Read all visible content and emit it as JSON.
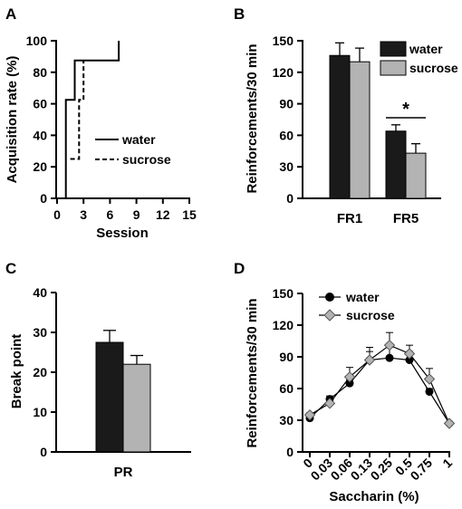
{
  "colors": {
    "water": "#1a1a1a",
    "sucrose": "#b3b3b3",
    "axis": "#000000"
  },
  "chart_data": [
    {
      "panel": "A",
      "type": "line",
      "step": true,
      "xlabel": "Session",
      "ylabel": "Acquisition rate (%)",
      "xlim": [
        0,
        15
      ],
      "ylim": [
        0,
        100
      ],
      "xticks": [
        "0",
        "3",
        "6",
        "9",
        "12",
        "15"
      ],
      "yticks": [
        "0",
        "20",
        "40",
        "60",
        "80",
        "100"
      ],
      "grid": false,
      "legend_position": "right",
      "series": [
        {
          "name": "water",
          "style": "solid",
          "points": [
            [
              1,
              0
            ],
            [
              1,
              62.5
            ],
            [
              2,
              62.5
            ],
            [
              2,
              87.5
            ],
            [
              7,
              87.5
            ],
            [
              7,
              100
            ]
          ]
        },
        {
          "name": "sucrose",
          "style": "dashed",
          "points": [
            [
              1.5,
              25
            ],
            [
              2.5,
              25
            ],
            [
              2.5,
              62.5
            ],
            [
              3,
              62.5
            ],
            [
              3,
              87.5
            ]
          ]
        }
      ]
    },
    {
      "panel": "B",
      "type": "bar",
      "ylabel": "Reinforcements/30  min",
      "categories": [
        "FR1",
        "FR5"
      ],
      "ylim": [
        0,
        150
      ],
      "yticks": [
        "0",
        "30",
        "60",
        "90",
        "120",
        "150"
      ],
      "grid": false,
      "legend_position": "top-right",
      "series": [
        {
          "name": "water",
          "values": [
            136,
            64
          ],
          "errors": [
            12,
            6
          ]
        },
        {
          "name": "sucrose",
          "values": [
            130,
            43
          ],
          "errors": [
            13,
            9
          ]
        }
      ],
      "annotation": "*"
    },
    {
      "panel": "C",
      "type": "bar",
      "ylabel": "Break point",
      "categories": [
        "PR"
      ],
      "ylim": [
        0,
        40
      ],
      "yticks": [
        "0",
        "10",
        "20",
        "30",
        "40"
      ],
      "grid": false,
      "series": [
        {
          "values": [
            27.5
          ],
          "errors": [
            3
          ]
        },
        {
          "values": [
            22
          ],
          "errors": [
            2.2
          ]
        }
      ]
    },
    {
      "panel": "D",
      "type": "line",
      "xlabel": "Saccharin (%)",
      "ylabel": "Reinforcements/30  min",
      "categories": [
        "0",
        "0.03",
        "0.06",
        "0.13",
        "0.25",
        "0.5",
        "0.75",
        "1"
      ],
      "ylim": [
        0,
        150
      ],
      "yticks": [
        "0",
        "30",
        "60",
        "90",
        "120",
        "150"
      ],
      "grid": false,
      "legend_position": "top-left",
      "series": [
        {
          "name": "water",
          "marker": "circle",
          "values": [
            32,
            50,
            65,
            87,
            89,
            87,
            57,
            27
          ],
          "errors": [
            2,
            3,
            3,
            8,
            10,
            8,
            3,
            1
          ]
        },
        {
          "name": "sucrose",
          "marker": "diamond",
          "values": [
            35,
            46,
            71,
            87,
            101,
            93,
            69,
            27
          ],
          "errors": [
            2,
            3,
            9,
            12,
            12,
            8,
            10,
            1
          ]
        }
      ]
    }
  ]
}
